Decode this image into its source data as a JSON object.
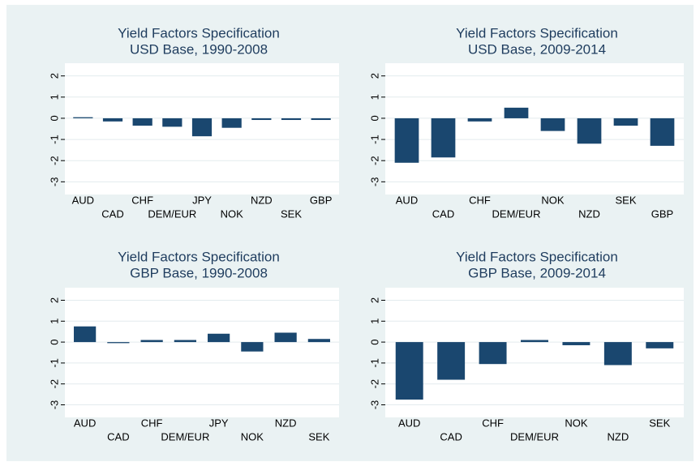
{
  "chart_data": [
    {
      "type": "bar",
      "title": "Yield Factors Specification",
      "subtitle": "USD Base, 1990-2008",
      "categories": [
        "AUD",
        "CAD",
        "CHF",
        "DEM/EUR",
        "JPY",
        "NOK",
        "NZD",
        "SEK",
        "GBP"
      ],
      "values": [
        0.05,
        -0.15,
        -0.35,
        -0.4,
        -0.85,
        -0.45,
        -0.08,
        -0.08,
        -0.08
      ],
      "color": "#1a476f",
      "ylim": [
        -3.6,
        2.6
      ],
      "yticks": [
        -3,
        -2,
        -1,
        0,
        1,
        2
      ],
      "grid": true
    },
    {
      "type": "bar",
      "title": "Yield Factors Specification",
      "subtitle": "USD Base, 2009-2014",
      "categories": [
        "AUD",
        "CAD",
        "CHF",
        "DEM/EUR",
        "NOK",
        "NZD",
        "SEK",
        "GBP"
      ],
      "values": [
        -2.1,
        -1.85,
        -0.15,
        0.5,
        -0.6,
        -1.2,
        -0.35,
        -1.3
      ],
      "color": "#1a476f",
      "ylim": [
        -3.6,
        2.6
      ],
      "yticks": [
        -3,
        -2,
        -1,
        0,
        1,
        2
      ],
      "grid": true
    },
    {
      "type": "bar",
      "title": "Yield Factors Specification",
      "subtitle": "GBP Base, 1990-2008",
      "categories": [
        "AUD",
        "CAD",
        "CHF",
        "DEM/EUR",
        "JPY",
        "NOK",
        "NZD",
        "SEK"
      ],
      "values": [
        0.75,
        -0.05,
        0.1,
        0.1,
        0.4,
        -0.45,
        0.45,
        0.15
      ],
      "color": "#1a476f",
      "ylim": [
        -3.6,
        2.6
      ],
      "yticks": [
        -3,
        -2,
        -1,
        0,
        1,
        2
      ],
      "grid": true
    },
    {
      "type": "bar",
      "title": "Yield Factors Specification",
      "subtitle": "GBP Base, 2009-2014",
      "categories": [
        "AUD",
        "CAD",
        "CHF",
        "DEM/EUR",
        "NOK",
        "NZD",
        "SEK"
      ],
      "values": [
        -2.75,
        -1.8,
        -1.05,
        0.1,
        -0.15,
        -1.1,
        -0.3
      ],
      "color": "#1a476f",
      "ylim": [
        -3.6,
        2.6
      ],
      "yticks": [
        -3,
        -2,
        -1,
        0,
        1,
        2
      ],
      "grid": true
    }
  ]
}
